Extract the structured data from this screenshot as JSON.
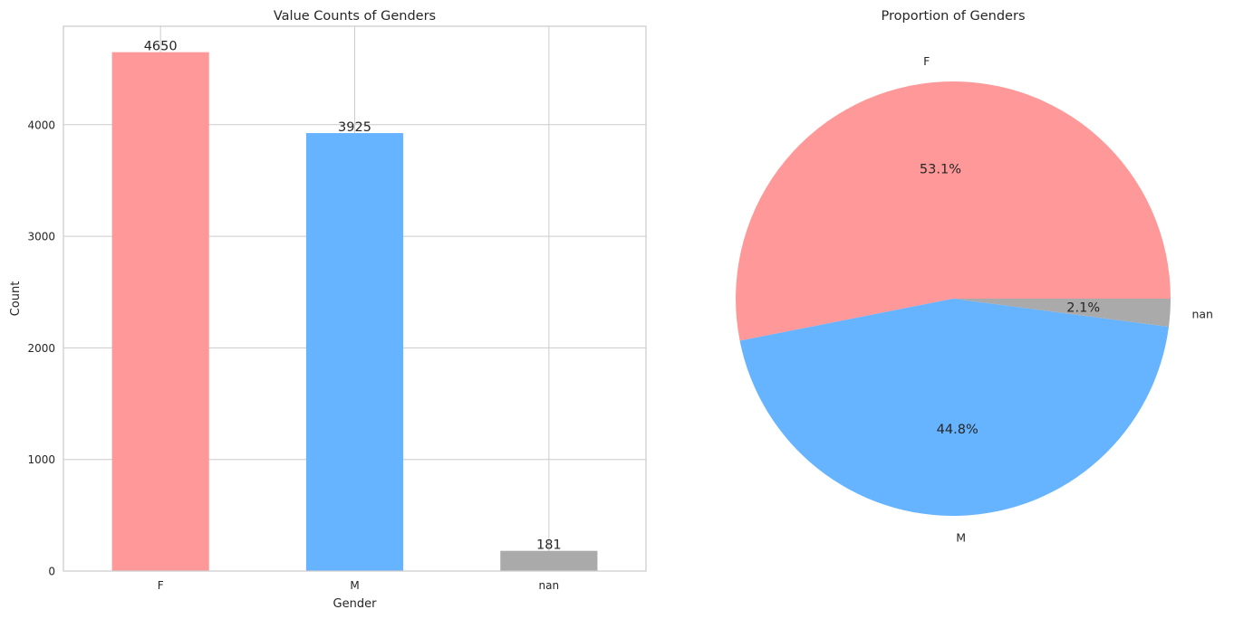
{
  "chart_data": [
    {
      "type": "bar",
      "title": "Value Counts of Genders",
      "xlabel": "Gender",
      "ylabel": "Count",
      "categories": [
        "F",
        "M",
        "nan"
      ],
      "values": [
        4650,
        3925,
        181
      ],
      "value_labels": [
        "4650",
        "3925",
        "181"
      ],
      "colors": [
        "#ff9999",
        "#66b3ff",
        "#aaaaaa"
      ],
      "ylim": [
        0,
        4882.5
      ],
      "yticks": [
        0,
        1000,
        2000,
        3000,
        4000
      ],
      "ytick_labels": [
        "0",
        "1000",
        "2000",
        "3000",
        "4000"
      ],
      "grid": true
    },
    {
      "type": "pie",
      "title": "Proportion of Genders",
      "labels": [
        "F",
        "M",
        "nan"
      ],
      "values": [
        4650,
        3925,
        181
      ],
      "percent_labels": [
        "53.1%",
        "44.8%",
        "2.1%"
      ],
      "colors": [
        "#ff9999",
        "#66b3ff",
        "#aaaaaa"
      ]
    }
  ]
}
